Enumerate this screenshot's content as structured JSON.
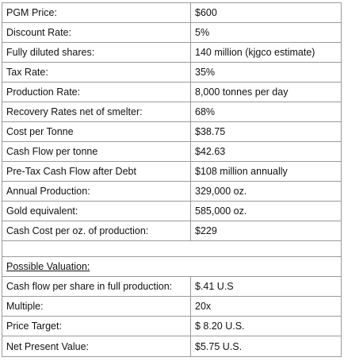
{
  "rows": [
    {
      "label": "PGM Price:",
      "value": "$600"
    },
    {
      "label": "Discount Rate:",
      "value": "5%"
    },
    {
      "label": "Fully diluted shares:",
      "value": "140 million (kjgco estimate)"
    },
    {
      "label": "Tax Rate:",
      "value": "35%"
    },
    {
      "label": "Production Rate:",
      "value": "8,000  tonnes per day"
    },
    {
      "label": "Recovery Rates net of smelter:",
      "value": "68%"
    },
    {
      "label": "Cost per Tonne",
      "value": "$38.75"
    },
    {
      "label": "Cash Flow per tonne",
      "value": "$42.63"
    },
    {
      "label": "Pre-Tax Cash Flow after Debt",
      "value": "$108 million annually"
    },
    {
      "label": "Annual Production:",
      "value": "329,000 oz."
    },
    {
      "label": "Gold equivalent:",
      "value": "585,000 oz."
    },
    {
      "label": "Cash Cost per oz. of production:",
      "value": "$229"
    }
  ],
  "valuation_header": "Possible Valuation:",
  "valuation_rows": [
    {
      "label": "Cash flow per share in full production:",
      "value": "$.41 U.S"
    },
    {
      "label": "Multiple:",
      "value": "20x"
    },
    {
      "label": "Price Target:",
      "value": "$ 8.20 U.S."
    },
    {
      "label": "Net Present Value:",
      "value": "$5.75 U.S."
    }
  ]
}
